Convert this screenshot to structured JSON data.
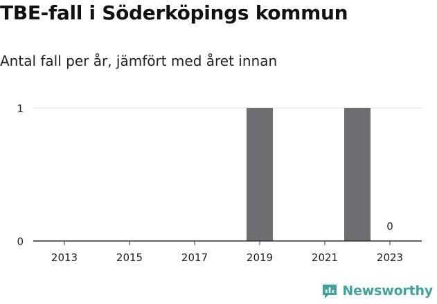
{
  "title": "TBE-fall i Söderköpings kommun",
  "subtitle": "Antal fall per år, jämfört med året innan",
  "brand": {
    "name": "Newsworthy",
    "icon": "newsworthy-logo-icon",
    "color": "#3fa59c"
  },
  "chart_data": {
    "type": "bar",
    "categories": [
      "2013",
      "2014",
      "2015",
      "2016",
      "2017",
      "2018",
      "2019",
      "2020",
      "2021",
      "2022",
      "2023"
    ],
    "x_tick_labels": [
      "2013",
      "2015",
      "2017",
      "2019",
      "2021",
      "2023"
    ],
    "values": [
      0,
      0,
      0,
      0,
      0,
      0,
      1,
      0,
      0,
      1,
      0
    ],
    "value_labels": [
      {
        "category": "2023",
        "text": "0"
      }
    ],
    "yticks": [
      0,
      1
    ],
    "ylim": [
      0,
      1
    ],
    "xlabel": "",
    "ylabel": "",
    "grid": true,
    "colors": {
      "bar": "#6e6d72",
      "grid": "#dddddd",
      "axis": "#333333"
    }
  }
}
